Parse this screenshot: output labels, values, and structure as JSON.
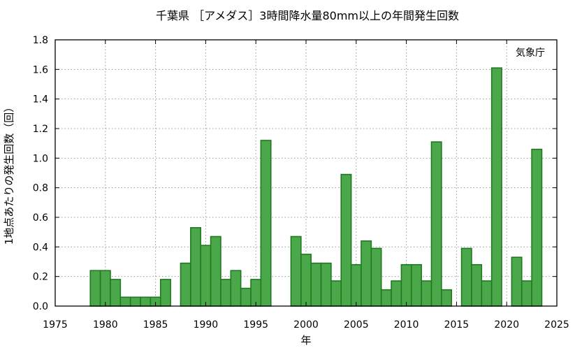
{
  "chart_data": {
    "type": "bar",
    "title": "千葉県 ［アメダス］3時間降水量80mm以上の年間発生回数",
    "xlabel": "年",
    "ylabel": "1地点あたりの発生回数（回）",
    "annotation": "気象庁",
    "xlim": [
      1975,
      2025
    ],
    "ylim": [
      0,
      1.8
    ],
    "xticks": [
      1975,
      1980,
      1985,
      1990,
      1995,
      2000,
      2005,
      2010,
      2015,
      2020,
      2025
    ],
    "yticks": [
      0.0,
      0.2,
      0.4,
      0.6,
      0.8,
      1.0,
      1.2,
      1.4,
      1.6,
      1.8
    ],
    "ytick_labels": [
      "0.0",
      "0.2",
      "0.4",
      "0.6",
      "0.8",
      "1.0",
      "1.2",
      "1.4",
      "1.6",
      "1.8"
    ],
    "grid": true,
    "bar_fill": "#4aa84a",
    "bar_edge": "#1f7a1f",
    "points": [
      {
        "x": 1979,
        "y": 0.24
      },
      {
        "x": 1980,
        "y": 0.24
      },
      {
        "x": 1981,
        "y": 0.18
      },
      {
        "x": 1982,
        "y": 0.06
      },
      {
        "x": 1983,
        "y": 0.06
      },
      {
        "x": 1984,
        "y": 0.06
      },
      {
        "x": 1985,
        "y": 0.06
      },
      {
        "x": 1986,
        "y": 0.18
      },
      {
        "x": 1987,
        "y": 0.0
      },
      {
        "x": 1988,
        "y": 0.29
      },
      {
        "x": 1989,
        "y": 0.53
      },
      {
        "x": 1990,
        "y": 0.41
      },
      {
        "x": 1991,
        "y": 0.47
      },
      {
        "x": 1992,
        "y": 0.18
      },
      {
        "x": 1993,
        "y": 0.24
      },
      {
        "x": 1994,
        "y": 0.12
      },
      {
        "x": 1995,
        "y": 0.18
      },
      {
        "x": 1996,
        "y": 1.12
      },
      {
        "x": 1997,
        "y": 0.0
      },
      {
        "x": 1998,
        "y": 0.0
      },
      {
        "x": 1999,
        "y": 0.47
      },
      {
        "x": 2000,
        "y": 0.35
      },
      {
        "x": 2001,
        "y": 0.29
      },
      {
        "x": 2002,
        "y": 0.29
      },
      {
        "x": 2003,
        "y": 0.17
      },
      {
        "x": 2004,
        "y": 0.89
      },
      {
        "x": 2005,
        "y": 0.28
      },
      {
        "x": 2006,
        "y": 0.44
      },
      {
        "x": 2007,
        "y": 0.39
      },
      {
        "x": 2008,
        "y": 0.11
      },
      {
        "x": 2009,
        "y": 0.17
      },
      {
        "x": 2010,
        "y": 0.28
      },
      {
        "x": 2011,
        "y": 0.28
      },
      {
        "x": 2012,
        "y": 0.17
      },
      {
        "x": 2013,
        "y": 1.11
      },
      {
        "x": 2014,
        "y": 0.11
      },
      {
        "x": 2015,
        "y": 0.0
      },
      {
        "x": 2016,
        "y": 0.39
      },
      {
        "x": 2017,
        "y": 0.28
      },
      {
        "x": 2018,
        "y": 0.17
      },
      {
        "x": 2019,
        "y": 1.61
      },
      {
        "x": 2020,
        "y": 0.0
      },
      {
        "x": 2021,
        "y": 0.33
      },
      {
        "x": 2022,
        "y": 0.17
      },
      {
        "x": 2023,
        "y": 1.06
      }
    ]
  }
}
